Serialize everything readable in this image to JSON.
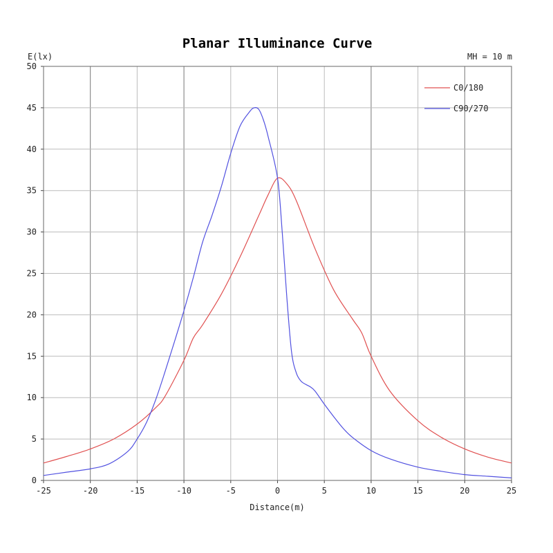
{
  "chart_data": {
    "type": "line",
    "title": "Planar Illuminance Curve",
    "ylabel": "E(lx)",
    "xlabel": "Distance(m)",
    "annotation": "MH = 10 m",
    "xlim": [
      -25,
      25
    ],
    "ylim": [
      0,
      50
    ],
    "xticks": [
      -25,
      -20,
      -15,
      -10,
      -5,
      0,
      5,
      10,
      15,
      20,
      25
    ],
    "xtick_labels": [
      "-25",
      "-20",
      "-15",
      "-10",
      "-5",
      "0",
      "5",
      "10",
      "15",
      "20",
      "25"
    ],
    "yticks": [
      0,
      5,
      10,
      15,
      20,
      25,
      30,
      35,
      40,
      45,
      50
    ],
    "ytick_labels": [
      "0",
      "5",
      "10",
      "15",
      "20",
      "25",
      "30",
      "35",
      "40",
      "45",
      "50"
    ],
    "grid": true,
    "legend_position": "top-right",
    "series": [
      {
        "name": "C0/180",
        "color": "#e05050",
        "x": [
          -25,
          -22.5,
          -20,
          -17.5,
          -15,
          -13,
          -12,
          -10,
          -9,
          -8,
          -6,
          -4,
          -2,
          -1,
          0,
          1,
          2,
          4,
          6,
          8,
          9,
          10,
          12,
          15,
          17.5,
          20,
          22.5,
          25
        ],
        "y": [
          2.1,
          2.9,
          3.8,
          5.0,
          6.8,
          8.8,
          10.2,
          14.5,
          17.2,
          18.8,
          22.5,
          27.0,
          32.0,
          34.5,
          36.5,
          35.8,
          33.8,
          28.0,
          23.0,
          19.5,
          17.8,
          15.0,
          10.8,
          7.2,
          5.2,
          3.8,
          2.8,
          2.1
        ]
      },
      {
        "name": "C90/270",
        "color": "#5050e0",
        "x": [
          -25,
          -22.5,
          -20,
          -18,
          -16,
          -15,
          -14,
          -13,
          -12,
          -11,
          -10,
          -9,
          -8,
          -7,
          -6,
          -5,
          -4,
          -3,
          -2.5,
          -2,
          -1.5,
          -1,
          0,
          0.5,
          1,
          1.5,
          2,
          2.5,
          3,
          3.5,
          4,
          5,
          6,
          7,
          8,
          10,
          12,
          15,
          17.5,
          20,
          22.5,
          25
        ],
        "y": [
          0.6,
          1.0,
          1.4,
          2.0,
          3.5,
          5.0,
          7.0,
          9.8,
          13.2,
          16.8,
          20.5,
          24.5,
          28.8,
          32.0,
          35.5,
          39.5,
          42.8,
          44.5,
          45.0,
          44.8,
          43.5,
          41.5,
          36.5,
          30.0,
          22.0,
          15.5,
          13.0,
          12.0,
          11.6,
          11.3,
          10.8,
          9.2,
          7.7,
          6.3,
          5.2,
          3.6,
          2.6,
          1.6,
          1.1,
          0.7,
          0.5,
          0.3
        ]
      }
    ]
  }
}
